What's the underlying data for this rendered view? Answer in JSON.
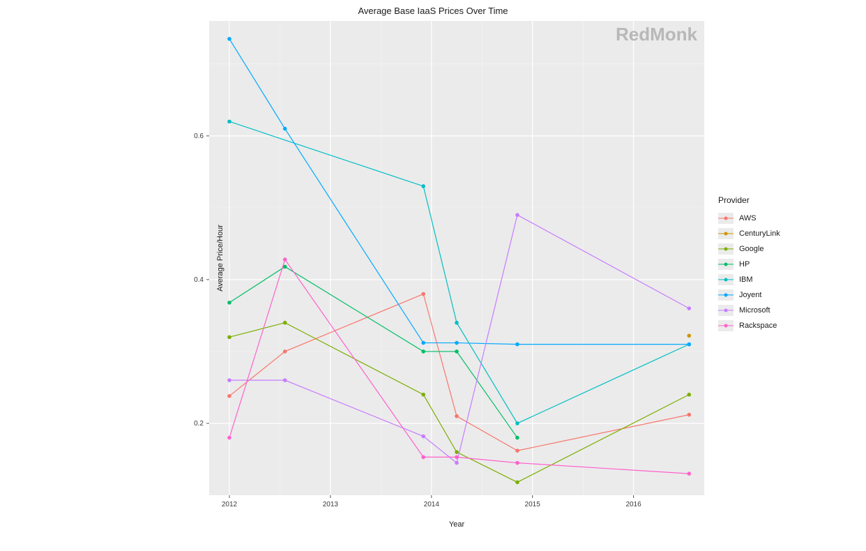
{
  "title": "Average Base IaaS Prices Over Time",
  "watermark": "RedMonk",
  "xlabel": "Year",
  "ylabel": "Average Price/Hour",
  "panel_bg": "#ebebeb",
  "grid_major_color": "#ffffff",
  "grid_minor_color": "#f5f5f5",
  "x": {
    "min": 2011.8,
    "max": 2016.7,
    "ticks": [
      2012,
      2013,
      2014,
      2015,
      2016
    ]
  },
  "y": {
    "min": 0.1,
    "max": 0.76,
    "ticks": [
      0.2,
      0.4,
      0.6
    ]
  },
  "legend_title": "Provider",
  "series": [
    {
      "name": "AWS",
      "color": "#f8766d",
      "points": [
        {
          "x": 2012.0,
          "y": 0.238
        },
        {
          "x": 2012.55,
          "y": 0.3
        },
        {
          "x": 2013.92,
          "y": 0.38
        },
        {
          "x": 2014.25,
          "y": 0.21
        },
        {
          "x": 2014.85,
          "y": 0.162
        },
        {
          "x": 2016.55,
          "y": 0.212
        }
      ]
    },
    {
      "name": "CenturyLink",
      "color": "#cd9600",
      "points": [
        {
          "x": 2016.55,
          "y": 0.322
        }
      ]
    },
    {
      "name": "Google",
      "color": "#7cae00",
      "points": [
        {
          "x": 2012.0,
          "y": 0.32
        },
        {
          "x": 2012.55,
          "y": 0.34
        },
        {
          "x": 2013.92,
          "y": 0.24
        },
        {
          "x": 2014.25,
          "y": 0.16
        },
        {
          "x": 2014.85,
          "y": 0.118
        },
        {
          "x": 2016.55,
          "y": 0.24
        }
      ]
    },
    {
      "name": "HP",
      "color": "#00be67",
      "points": [
        {
          "x": 2012.0,
          "y": 0.368
        },
        {
          "x": 2012.55,
          "y": 0.418
        },
        {
          "x": 2013.92,
          "y": 0.3
        },
        {
          "x": 2014.25,
          "y": 0.3
        },
        {
          "x": 2014.85,
          "y": 0.18
        }
      ]
    },
    {
      "name": "IBM",
      "color": "#00bfc4",
      "points": [
        {
          "x": 2012.0,
          "y": 0.62
        },
        {
          "x": 2013.92,
          "y": 0.53
        },
        {
          "x": 2014.25,
          "y": 0.34
        },
        {
          "x": 2014.85,
          "y": 0.2
        },
        {
          "x": 2016.55,
          "y": 0.31
        }
      ]
    },
    {
      "name": "Joyent",
      "color": "#00a9ff",
      "points": [
        {
          "x": 2012.0,
          "y": 0.735
        },
        {
          "x": 2012.55,
          "y": 0.61
        },
        {
          "x": 2013.92,
          "y": 0.312
        },
        {
          "x": 2014.25,
          "y": 0.312
        },
        {
          "x": 2014.85,
          "y": 0.31
        },
        {
          "x": 2016.55,
          "y": 0.31
        }
      ]
    },
    {
      "name": "Microsoft",
      "color": "#c77cff",
      "points": [
        {
          "x": 2012.0,
          "y": 0.26
        },
        {
          "x": 2012.55,
          "y": 0.26
        },
        {
          "x": 2013.92,
          "y": 0.182
        },
        {
          "x": 2014.25,
          "y": 0.145
        },
        {
          "x": 2014.85,
          "y": 0.49
        },
        {
          "x": 2016.55,
          "y": 0.36
        }
      ]
    },
    {
      "name": "Rackspace",
      "color": "#ff61cc",
      "points": [
        {
          "x": 2012.0,
          "y": 0.18
        },
        {
          "x": 2012.55,
          "y": 0.428
        },
        {
          "x": 2013.92,
          "y": 0.153
        },
        {
          "x": 2014.25,
          "y": 0.153
        },
        {
          "x": 2014.85,
          "y": 0.145
        },
        {
          "x": 2016.55,
          "y": 0.13
        }
      ]
    }
  ]
}
